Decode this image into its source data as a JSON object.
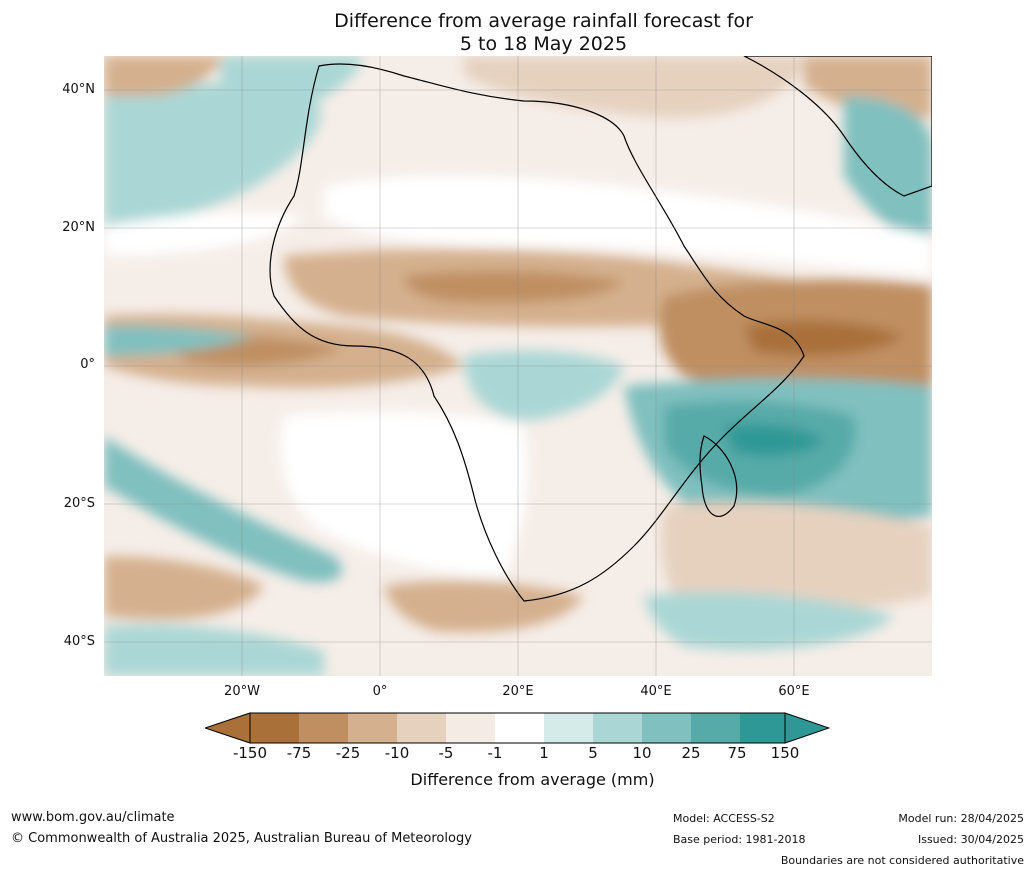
{
  "title": {
    "line1": "Difference from average rainfall forecast for",
    "line2": "5 to 18 May 2025"
  },
  "map": {
    "latitude_labels": [
      "40°N",
      "20°N",
      "0°",
      "20°S",
      "40°S"
    ],
    "longitude_labels": [
      "20°W",
      "0°",
      "20°E",
      "40°E",
      "60°E"
    ]
  },
  "colorbar": {
    "title": "Difference from average (mm)",
    "ticks": [
      "-150",
      "-75",
      "-25",
      "-10",
      "-5",
      "-1",
      "1",
      "5",
      "10",
      "25",
      "75",
      "150"
    ],
    "colors": [
      "#a9703a",
      "#bf8f62",
      "#d4b08e",
      "#e6d1bf",
      "#f4ebe5",
      "#ffffff",
      "#d5ebe9",
      "#aad7d5",
      "#80c0bf",
      "#56aaa8",
      "#2d9896"
    ],
    "extend_low_color": "#a9703a",
    "extend_high_color": "#2d9896"
  },
  "footer": {
    "website": "www.bom.gov.au/climate",
    "copyright": "© Commonwealth of Australia 2025, Australian Bureau of Meteorology",
    "model": "Model: ACCESS-S2",
    "base_period": "Base period: 1981-2018",
    "model_run": "Model run: 28/04/2025",
    "issued": "Issued: 30/04/2025",
    "disclaimer": "Boundaries are not considered authoritative"
  }
}
